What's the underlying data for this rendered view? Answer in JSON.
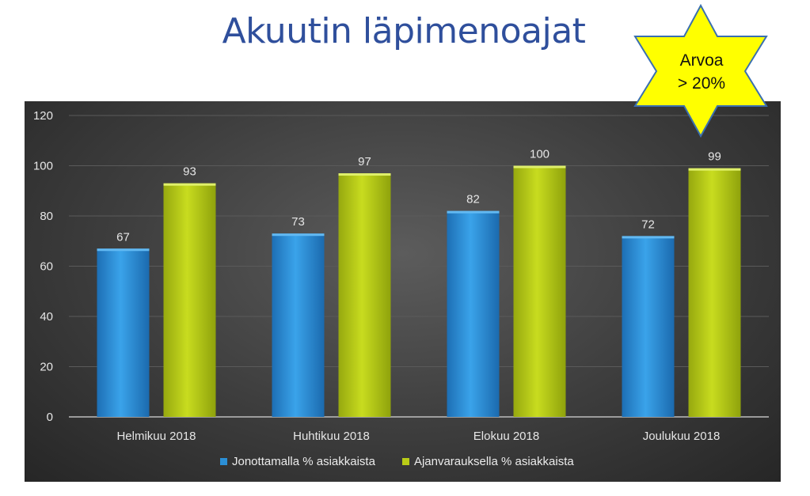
{
  "slide": {
    "title": "Akuutin läpimenoajat",
    "badge_line1": "Arvoa",
    "badge_line2": "> 20%"
  },
  "colors": {
    "series1": "#2b8fd6",
    "series2": "#b9cc17",
    "badge_fill": "#ffff00",
    "title": "#2f4f9c"
  },
  "chart_data": {
    "type": "bar",
    "categories": [
      "Helmikuu 2018",
      "Huhtikuu 2018",
      "Elokuu 2018",
      "Joulukuu 2018"
    ],
    "series": [
      {
        "name": "Jonottamalla % asiakkaista",
        "values": [
          67,
          73,
          82,
          72
        ]
      },
      {
        "name": "Ajanvarauksella % asiakkaista",
        "values": [
          93,
          97,
          100,
          99
        ]
      }
    ],
    "ylim": [
      0,
      120
    ],
    "yticks": [
      0,
      20,
      40,
      60,
      80,
      100,
      120
    ],
    "grid": true,
    "legend": "bottom",
    "data_labels": true
  }
}
